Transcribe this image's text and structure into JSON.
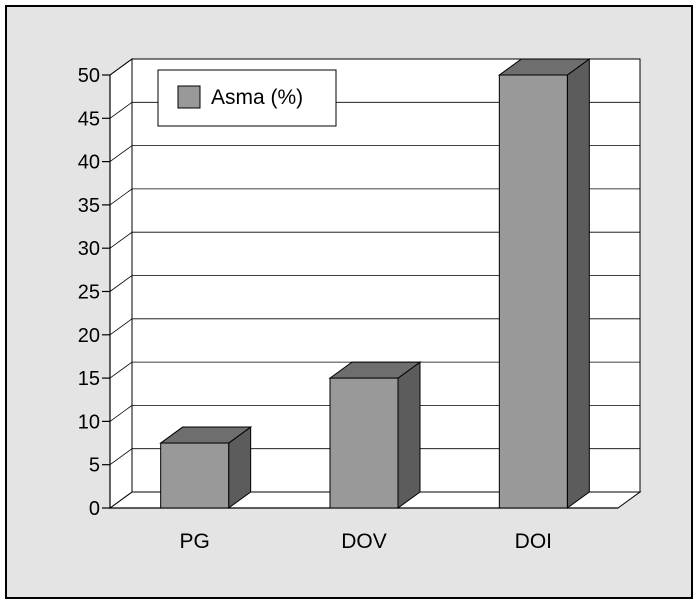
{
  "chart_data": {
    "type": "bar",
    "categories": [
      "PG",
      "DOV",
      "DOI"
    ],
    "series": [
      {
        "name": "Asma (%)",
        "values": [
          7.5,
          15,
          50
        ]
      }
    ],
    "title": "",
    "xlabel": "",
    "ylabel": "",
    "ylim": [
      0,
      50
    ],
    "yticks": [
      0,
      5,
      10,
      15,
      20,
      25,
      30,
      35,
      40,
      45,
      50
    ],
    "grid": true,
    "legend": "top-left",
    "colors": {
      "bar_front": "#999999",
      "bar_top": "#6e6e6e",
      "bar_side": "#5c5c5c",
      "plot_bg": "#ffffff",
      "frame_bg": "#e4e4e4"
    }
  }
}
